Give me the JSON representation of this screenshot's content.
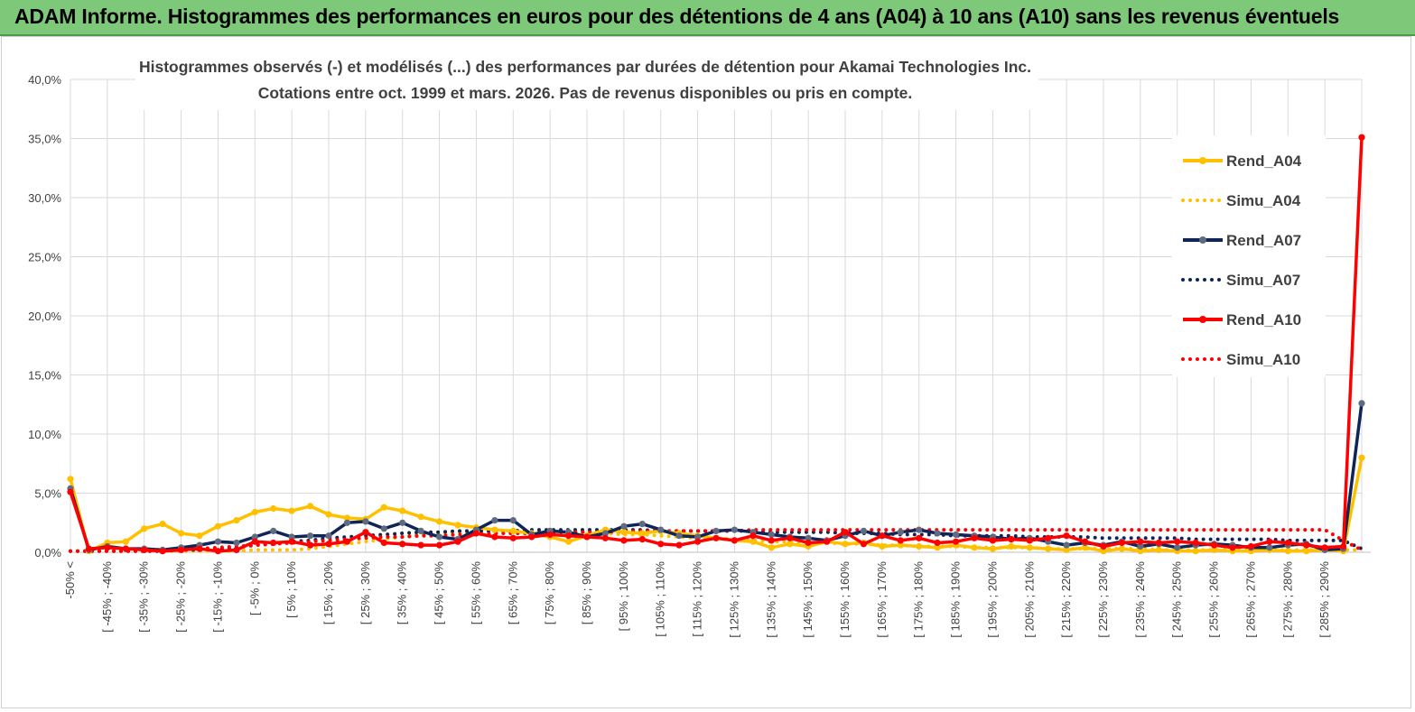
{
  "header": {
    "title": "ADAM Informe. Histogrammes des performances en euros pour des détentions de 4 ans (A04) à 10 ans (A10) sans les revenus éventuels"
  },
  "chart_data": {
    "type": "line",
    "subtitle_line1": "Histogrammes observés (-)  et modélisés (...) des performances par durées de détention pour Akamai Technologies Inc.",
    "subtitle_line2": "Cotations entre oct. 1999 et mars. 2026. Pas de revenus disponibles ou pris en compte.",
    "ylim": [
      0,
      40
    ],
    "yticks": [
      "0,0%",
      "5,0%",
      "10,0%",
      "15,0%",
      "20,0%",
      "25,0%",
      "30,0%",
      "35,0%",
      "40,0%"
    ],
    "grid": true,
    "legend_position": "right",
    "x_tick_labels": [
      "-50% <",
      "[ -45% ; -40%",
      "[ -35% ; -30%",
      "[ -25% ; -20%",
      "[ -15% ; -10%",
      "[ -5% ; 0%",
      "[ 5% ; 10%",
      "[ 15% ; 20%",
      "[ 25% ; 30%",
      "[ 35% ; 40%",
      "[ 45% ; 50%",
      "[ 55% ; 60%",
      "[ 65% ; 70%",
      "[ 75% ; 80%",
      "[ 85% ; 90%",
      "[ 95% ; 100%",
      "[ 105% ; 110%",
      "[ 115% ; 120%",
      "[ 125% ; 130%",
      "[ 135% ; 140%",
      "[ 145% ; 150%",
      "[ 155% ; 160%",
      "[ 165% ; 170%",
      "[ 175% ; 180%",
      "[ 185% ; 190%",
      "[ 195% ; 200%",
      "[ 205% ; 210%",
      "[ 215% ; 220%",
      "[ 225% ; 230%",
      "[ 235% ; 240%",
      "[ 245% ; 250%",
      "[ 255% ; 260%",
      "[ 265% ; 270%",
      "[ 275% ; 280%",
      "[ 285% ; 290%"
    ],
    "x_categories_count": 71,
    "series": [
      {
        "name": "Rend_A04",
        "style": "solid",
        "color": "#ffc000",
        "values": [
          6.2,
          0.1,
          0.8,
          0.9,
          2.0,
          2.4,
          1.6,
          1.4,
          2.2,
          2.7,
          3.4,
          3.7,
          3.5,
          3.9,
          3.2,
          2.9,
          2.8,
          3.8,
          3.5,
          3.0,
          2.6,
          2.3,
          2.1,
          1.9,
          1.8,
          1.6,
          1.3,
          0.9,
          1.4,
          1.9,
          1.7,
          1.6,
          1.8,
          1.6,
          1.4,
          1.2,
          1.0,
          0.9,
          0.4,
          0.7,
          0.5,
          0.9,
          0.7,
          0.8,
          0.5,
          0.6,
          0.5,
          0.4,
          0.6,
          0.4,
          0.3,
          0.5,
          0.4,
          0.3,
          0.2,
          0.4,
          0.1,
          0.3,
          0.1,
          0.2,
          0.1,
          0.1,
          0.2,
          0.1,
          0.1,
          0.2,
          0.1,
          0.1,
          0.2,
          0.1,
          8.0
        ]
      },
      {
        "name": "Simu_A04",
        "style": "dotted",
        "color": "#ffc000",
        "values": [
          0.1,
          0.1,
          0.1,
          0.1,
          0.1,
          0.1,
          0.1,
          0.1,
          0.1,
          0.1,
          0.2,
          0.2,
          0.2,
          0.3,
          0.5,
          0.7,
          0.9,
          1.1,
          1.3,
          1.5,
          1.6,
          1.7,
          1.8,
          1.8,
          1.8,
          1.8,
          1.8,
          1.7,
          1.7,
          1.6,
          1.5,
          1.5,
          1.4,
          1.3,
          1.2,
          1.2,
          1.1,
          1.0,
          0.9,
          0.9,
          0.8,
          0.8,
          0.7,
          0.7,
          0.6,
          0.6,
          0.5,
          0.5,
          0.5,
          0.4,
          0.4,
          0.4,
          0.4,
          0.3,
          0.3,
          0.3,
          0.3,
          0.3,
          0.3,
          0.2,
          0.2,
          0.2,
          0.2,
          0.2,
          0.2,
          0.2,
          0.2,
          0.2,
          0.2,
          0.2,
          0.2
        ]
      },
      {
        "name": "Rend_A07",
        "style": "solid",
        "color": "#0f2557",
        "values": [
          5.4,
          0.2,
          0.5,
          0.3,
          0.3,
          0.2,
          0.4,
          0.6,
          0.9,
          0.8,
          1.3,
          1.8,
          1.3,
          1.4,
          1.4,
          2.5,
          2.6,
          2.0,
          2.5,
          1.8,
          1.3,
          1.1,
          1.9,
          2.7,
          2.7,
          1.5,
          1.8,
          1.7,
          1.3,
          1.6,
          2.2,
          2.4,
          1.9,
          1.4,
          1.3,
          1.8,
          1.9,
          1.7,
          1.5,
          1.3,
          1.2,
          1.0,
          1.4,
          1.8,
          1.4,
          1.7,
          1.9,
          1.6,
          1.5,
          1.4,
          1.3,
          1.1,
          1.2,
          0.9,
          0.6,
          0.8,
          0.6,
          0.9,
          0.5,
          0.7,
          0.4,
          0.6,
          0.7,
          0.6,
          0.4,
          0.4,
          0.6,
          0.7,
          0.2,
          0.3,
          12.6
        ]
      },
      {
        "name": "Simu_A07",
        "style": "dotted",
        "color": "#0f2557",
        "values": [
          0.1,
          0.1,
          0.1,
          0.1,
          0.1,
          0.1,
          0.2,
          0.2,
          0.3,
          0.4,
          0.6,
          0.7,
          0.9,
          1.0,
          1.2,
          1.3,
          1.4,
          1.5,
          1.6,
          1.7,
          1.7,
          1.8,
          1.8,
          1.8,
          1.8,
          1.9,
          1.9,
          1.9,
          1.9,
          1.9,
          1.9,
          1.9,
          1.8,
          1.8,
          1.8,
          1.8,
          1.8,
          1.8,
          1.7,
          1.7,
          1.7,
          1.7,
          1.6,
          1.6,
          1.6,
          1.5,
          1.5,
          1.5,
          1.4,
          1.4,
          1.4,
          1.4,
          1.3,
          1.3,
          1.3,
          1.3,
          1.2,
          1.2,
          1.2,
          1.2,
          1.2,
          1.1,
          1.1,
          1.1,
          1.1,
          1.1,
          1.0,
          1.0,
          1.0,
          1.0,
          0.3
        ]
      },
      {
        "name": "Rend_A10",
        "style": "solid",
        "color": "#ff0000",
        "values": [
          5.1,
          0.3,
          0.4,
          0.3,
          0.2,
          0.1,
          0.2,
          0.3,
          0.1,
          0.2,
          0.9,
          0.8,
          0.9,
          0.6,
          0.7,
          0.9,
          1.7,
          0.8,
          0.7,
          0.6,
          0.6,
          0.9,
          1.6,
          1.3,
          1.2,
          1.3,
          1.5,
          1.4,
          1.3,
          1.2,
          1.0,
          1.1,
          0.7,
          0.6,
          0.9,
          1.2,
          1.0,
          1.4,
          1.0,
          1.2,
          0.8,
          0.9,
          1.7,
          0.7,
          1.4,
          1.0,
          1.2,
          0.8,
          0.9,
          1.2,
          1.0,
          1.1,
          1.0,
          1.2,
          1.4,
          0.9,
          0.5,
          0.8,
          0.9,
          0.8,
          0.9,
          0.8,
          0.6,
          0.4,
          0.5,
          0.9,
          0.8,
          0.6,
          0.4,
          0.5,
          35.1
        ]
      },
      {
        "name": "Simu_A10",
        "style": "dotted",
        "color": "#ff0000",
        "values": [
          0.1,
          0.1,
          0.1,
          0.1,
          0.1,
          0.1,
          0.2,
          0.3,
          0.4,
          0.5,
          0.6,
          0.7,
          0.8,
          0.9,
          1.0,
          1.1,
          1.2,
          1.3,
          1.3,
          1.4,
          1.4,
          1.5,
          1.5,
          1.6,
          1.6,
          1.6,
          1.7,
          1.7,
          1.7,
          1.7,
          1.8,
          1.8,
          1.8,
          1.8,
          1.8,
          1.8,
          1.8,
          1.9,
          1.9,
          1.9,
          1.9,
          1.9,
          1.9,
          1.9,
          1.9,
          1.9,
          1.9,
          1.9,
          1.9,
          1.9,
          1.9,
          1.9,
          1.9,
          1.9,
          1.9,
          1.9,
          1.9,
          1.9,
          1.9,
          1.9,
          1.9,
          1.9,
          1.9,
          1.9,
          1.9,
          1.9,
          1.9,
          1.9,
          1.9,
          1.0,
          0.2
        ]
      }
    ]
  }
}
